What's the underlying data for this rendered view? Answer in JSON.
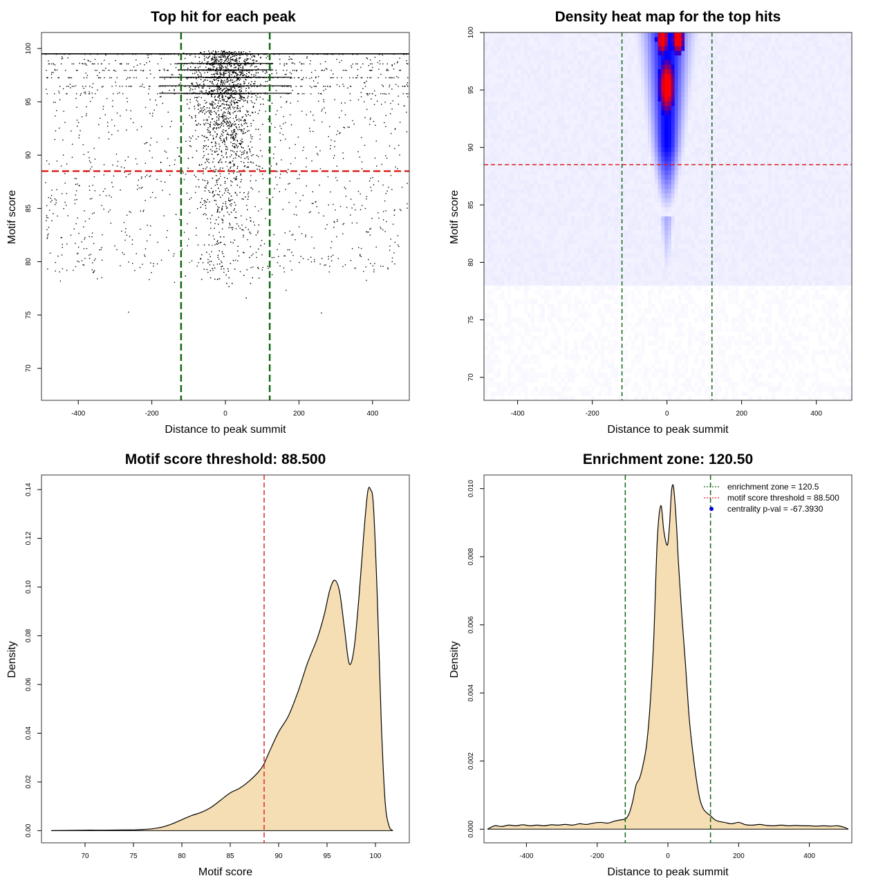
{
  "chart_data": [
    {
      "type": "scatter",
      "title": "Top hit for each peak",
      "xlabel": "Distance to peak summit",
      "ylabel": "Motif score",
      "xlim": [
        -500,
        500
      ],
      "ylim": [
        67,
        101.5
      ],
      "xticks": [
        -400,
        -200,
        0,
        200,
        400
      ],
      "yticks": [
        70,
        75,
        80,
        85,
        90,
        95,
        100
      ],
      "xtick_labels": [
        "-400",
        "-200",
        "0",
        "200",
        "400"
      ],
      "ytick_labels": [
        "70",
        "75",
        "80",
        "85",
        "90",
        "95",
        "100"
      ],
      "hlines": [
        {
          "y": 88.5,
          "color": "#dd2222",
          "style": "dashed"
        }
      ],
      "vlines": [
        {
          "x": -120.5,
          "color": "#116611",
          "style": "dashed"
        },
        {
          "x": 120.5,
          "color": "#116611",
          "style": "dashed"
        }
      ],
      "point_color": "#000000",
      "distribution": {
        "background_points": 1500,
        "central_points": 9000,
        "central_sd": 45,
        "score_levels": [
          99.5,
          98.6,
          98.0,
          97.3,
          96.5,
          95.8
        ]
      }
    },
    {
      "type": "heatmap",
      "title": "Density heat map for the top hits",
      "xlabel": "Distance to peak summit",
      "ylabel": "Motif score",
      "xlim": [
        -490,
        495
      ],
      "ylim": [
        68,
        100
      ],
      "xticks": [
        -400,
        -200,
        0,
        200,
        400
      ],
      "yticks": [
        70,
        75,
        80,
        85,
        90,
        95,
        100
      ],
      "xtick_labels": [
        "-400",
        "-200",
        "0",
        "200",
        "400"
      ],
      "ytick_labels": [
        "70",
        "75",
        "80",
        "85",
        "90",
        "95",
        "100"
      ],
      "colors": [
        "#ffffff",
        "#0000ff",
        "#ff0000"
      ],
      "hlines": [
        {
          "y": 88.5,
          "color": "#dd2222",
          "style": "dashed"
        }
      ],
      "vlines": [
        {
          "x": -120.5,
          "color": "#116611",
          "style": "dashed"
        },
        {
          "x": 120.5,
          "color": "#116611",
          "style": "dashed"
        }
      ]
    },
    {
      "type": "area",
      "title": "Motif score threshold: 88.500",
      "xlabel": "Motif score",
      "ylabel": "Density",
      "xlim": [
        65.5,
        103.5
      ],
      "ylim": [
        -0.005,
        0.146
      ],
      "xticks": [
        70,
        75,
        80,
        85,
        90,
        95,
        100
      ],
      "yticks": [
        0,
        0.02,
        0.04,
        0.06,
        0.08,
        0.1,
        0.12,
        0.14
      ],
      "xtick_labels": [
        "70",
        "75",
        "80",
        "85",
        "90",
        "95",
        "100"
      ],
      "ytick_labels": [
        "0.00",
        "0.02",
        "0.04",
        "0.06",
        "0.08",
        "0.10",
        "0.12",
        "0.14"
      ],
      "fill_color": "#f5deb3",
      "x": [
        66.5,
        70,
        72,
        74,
        75,
        76,
        77,
        78,
        79,
        80,
        81,
        82,
        83,
        84,
        85,
        86,
        87,
        88,
        88.5,
        89,
        90,
        91,
        92,
        93,
        94,
        94.7,
        95.3,
        95.8,
        96.3,
        96.8,
        97.3,
        97.8,
        98.3,
        98.8,
        99.2,
        99.5,
        99.8,
        100.2,
        100.6,
        101,
        101.4,
        101.8
      ],
      "y": [
        0,
        0.0002,
        0.0002,
        0.0003,
        0.0003,
        0.0005,
        0.0008,
        0.0015,
        0.0028,
        0.0045,
        0.0062,
        0.0075,
        0.0095,
        0.0125,
        0.0155,
        0.0175,
        0.0205,
        0.0245,
        0.0275,
        0.032,
        0.0405,
        0.047,
        0.057,
        0.069,
        0.079,
        0.0885,
        0.099,
        0.1028,
        0.098,
        0.083,
        0.0685,
        0.075,
        0.096,
        0.122,
        0.139,
        0.14,
        0.133,
        0.095,
        0.045,
        0.012,
        0.002,
        0
      ]
    },
    {
      "type": "area",
      "title": "Enrichment zone: 120.50",
      "xlabel": "Distance to peak summit",
      "ylabel": "Density",
      "xlim": [
        -520,
        520
      ],
      "ylim": [
        -0.0004,
        0.0104
      ],
      "xticks": [
        -400,
        -200,
        0,
        200,
        400
      ],
      "yticks": [
        0,
        0.002,
        0.004,
        0.006,
        0.008,
        0.01
      ],
      "xtick_labels": [
        "-400",
        "-200",
        "0",
        "200",
        "400"
      ],
      "ytick_labels": [
        "0.000",
        "0.002",
        "0.004",
        "0.006",
        "0.008",
        "0.010"
      ],
      "fill_color": "#f5deb3",
      "x": [
        -510,
        -490,
        -470,
        -450,
        -430,
        -410,
        -390,
        -370,
        -350,
        -330,
        -310,
        -290,
        -270,
        -250,
        -230,
        -210,
        -190,
        -170,
        -150,
        -130,
        -120,
        -110,
        -100,
        -90,
        -80,
        -70,
        -60,
        -50,
        -40,
        -30,
        -20,
        -12,
        -5,
        0,
        5,
        10,
        15,
        20,
        25,
        30,
        40,
        50,
        60,
        70,
        80,
        90,
        100,
        110,
        120,
        130,
        140,
        160,
        180,
        200,
        220,
        240,
        260,
        280,
        300,
        320,
        340,
        360,
        380,
        400,
        420,
        440,
        460,
        480,
        500,
        510
      ],
      "y": [
        0,
        0.0001,
        8e-05,
        0.00012,
        0.0001,
        0.00013,
        0.0001,
        0.00012,
        0.0001,
        0.00013,
        0.00012,
        0.00014,
        0.00012,
        0.00016,
        0.00014,
        0.00018,
        0.0002,
        0.00018,
        0.00024,
        0.00028,
        0.0003,
        0.00045,
        0.0008,
        0.0013,
        0.0015,
        0.0019,
        0.0025,
        0.0037,
        0.0056,
        0.0085,
        0.0095,
        0.0088,
        0.0084,
        0.0084,
        0.009,
        0.0099,
        0.0101,
        0.0096,
        0.0088,
        0.0078,
        0.0062,
        0.0048,
        0.0033,
        0.0023,
        0.0015,
        0.0009,
        0.0006,
        0.00048,
        0.0004,
        0.0003,
        0.00024,
        0.0002,
        0.00016,
        0.0002,
        0.00013,
        0.00012,
        0.00014,
        0.00011,
        0.0001,
        0.00012,
        0.0001,
        0.00011,
        0.0001,
        0.0001,
        9e-05,
        0.0001,
        9e-05,
        0.0001,
        5e-05,
        0
      ],
      "vlines": [
        {
          "x": -120.5,
          "color": "#116611",
          "style": "dashed"
        },
        {
          "x": 120.5,
          "color": "#116611",
          "style": "dashed"
        }
      ],
      "legend": {
        "position": "top-right",
        "entries": [
          {
            "label": "enrichment zone = 120.5",
            "color": "#116611",
            "kind": "dotted-line"
          },
          {
            "label": "motif score threshold = 88.500",
            "color": "#dd2222",
            "kind": "dotted-line"
          },
          {
            "label": "centrality p-val = -67.3930",
            "color": "#0000dd",
            "kind": "point"
          }
        ]
      }
    }
  ]
}
